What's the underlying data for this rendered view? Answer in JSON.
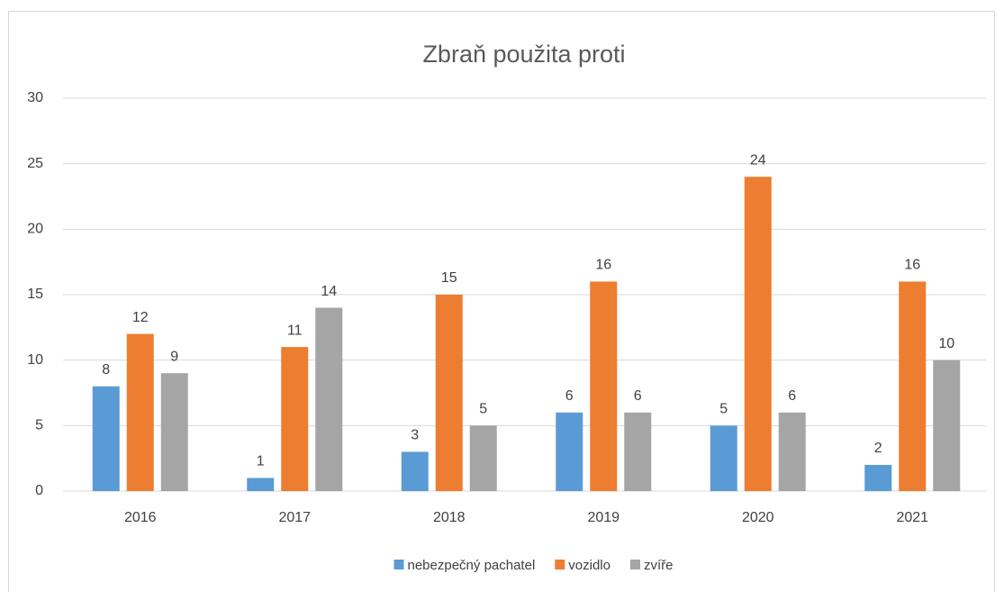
{
  "chart_data": {
    "type": "bar",
    "title": "Zbraň použita proti",
    "categories": [
      "2016",
      "2017",
      "2018",
      "2019",
      "2020",
      "2021"
    ],
    "series": [
      {
        "name": "nebezpečný pachatel",
        "color": "#5b9bd5",
        "values": [
          8,
          1,
          3,
          6,
          5,
          2
        ]
      },
      {
        "name": "vozidlo",
        "color": "#ed7d31",
        "values": [
          12,
          11,
          15,
          16,
          24,
          16
        ]
      },
      {
        "name": "zvíře",
        "color": "#a5a5a5",
        "values": [
          9,
          14,
          5,
          6,
          6,
          10
        ]
      }
    ],
    "ylim": [
      0,
      30
    ],
    "yticks": [
      0,
      5,
      10,
      15,
      20,
      25,
      30
    ],
    "grid": true,
    "legend": "bottom"
  }
}
